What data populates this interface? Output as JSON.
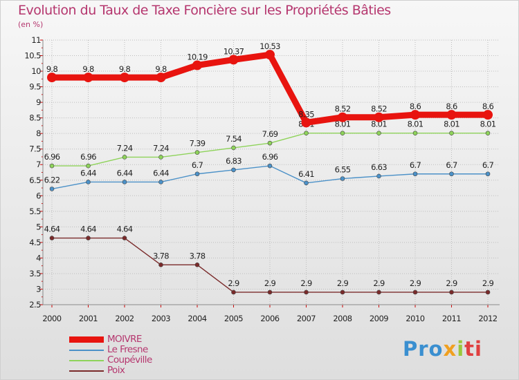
{
  "chart_data": {
    "type": "line",
    "title": "Evolution du Taux de Taxe Foncière sur les Propriétés Bâties",
    "subtitle": "(en %)",
    "x": [
      "2000",
      "2001",
      "2002",
      "2003",
      "2004",
      "2005",
      "2006",
      "2007",
      "2008",
      "2009",
      "2010",
      "2011",
      "2012"
    ],
    "ylim": [
      2.5,
      11
    ],
    "yticks": [
      "2.5",
      "3",
      "3.5",
      "4",
      "4.5",
      "5",
      "5.5",
      "6",
      "6.5",
      "7",
      "7.5",
      "8",
      "8.5",
      "9",
      "9.5",
      "10",
      "10.5",
      "11"
    ],
    "series": [
      {
        "name": "MOIVRE",
        "color": "#e8140f",
        "values": [
          9.8,
          9.8,
          9.8,
          9.8,
          10.19,
          10.37,
          10.53,
          8.35,
          8.52,
          8.52,
          8.6,
          8.6,
          8.6
        ],
        "labels": [
          "9.8",
          "9.8",
          "9.8",
          "9.8",
          "10.19",
          "10.37",
          "10.53",
          "8.35",
          "8.52",
          "8.52",
          "8.6",
          "8.6",
          "8.6"
        ]
      },
      {
        "name": "Le Fresne",
        "color": "#4b91c8",
        "values": [
          6.22,
          6.44,
          6.44,
          6.44,
          6.7,
          6.83,
          6.96,
          6.41,
          6.55,
          6.63,
          6.7,
          6.7,
          6.7
        ],
        "labels": [
          "6.22",
          "6.44",
          "6.44",
          "6.44",
          "6.7",
          "6.83",
          "6.96",
          "6.41",
          "6.55",
          "6.63",
          "6.7",
          "6.7",
          "6.7"
        ]
      },
      {
        "name": "Coupéville",
        "color": "#8ed35a",
        "values": [
          6.96,
          6.96,
          7.24,
          7.24,
          7.39,
          7.54,
          7.69,
          8.01,
          8.01,
          8.01,
          8.01,
          8.01,
          8.01
        ],
        "labels": [
          "6.96",
          "6.96",
          "7.24",
          "7.24",
          "7.39",
          "7.54",
          "7.69",
          "8.01",
          "8.01",
          "8.01",
          "8.01",
          "8.01",
          "8.01"
        ]
      },
      {
        "name": "Poix",
        "color": "#7a2a2a",
        "values": [
          4.64,
          4.64,
          4.64,
          3.78,
          3.78,
          2.9,
          2.9,
          2.9,
          2.9,
          2.9,
          2.9,
          2.9,
          2.9
        ],
        "labels": [
          "4.64",
          "4.64",
          "4.64",
          "3.78",
          "3.78",
          "2.9",
          "2.9",
          "2.9",
          "2.9",
          "2.9",
          "2.9",
          "2.9",
          "2.9"
        ]
      }
    ]
  },
  "logo": {
    "p1": "Pro",
    "p2": "x",
    "p3": "i",
    "p4": "ti"
  }
}
